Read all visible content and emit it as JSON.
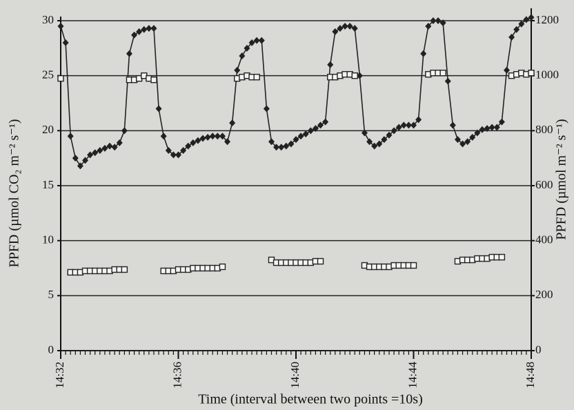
{
  "chart_data": {
    "type": "line",
    "x_label": "Time (interval between two points =10s)",
    "y_label": "PPFD (µmol CO₂ m⁻² s⁻¹)",
    "y2_label": "PPFD (µmol m⁻² s⁻¹)",
    "x": [
      52320,
      52330,
      52340,
      52350,
      52360,
      52370,
      52380,
      52390,
      52400,
      52410,
      52420,
      52430,
      52440,
      52450,
      52460,
      52470,
      52480,
      52490,
      52500,
      52510,
      52520,
      52530,
      52540,
      52550,
      52560,
      52570,
      52580,
      52590,
      52600,
      52610,
      52620,
      52630,
      52640,
      52650,
      52660,
      52670,
      52680,
      52690,
      52700,
      52710,
      52720,
      52730,
      52740,
      52750,
      52760,
      52770,
      52780,
      52790,
      52800,
      52810,
      52820,
      52830,
      52840,
      52850,
      52860,
      52870,
      52880,
      52890,
      52900,
      52910,
      52920,
      52930,
      52940,
      52950,
      52960,
      52970,
      52980,
      52990,
      53000,
      53010,
      53020,
      53030,
      53040,
      53050,
      53060,
      53070,
      53080,
      53090,
      53100,
      53110,
      53120,
      53130,
      53140,
      53150,
      53160,
      53170,
      53180,
      53190,
      53200,
      53210,
      53220,
      53230,
      53240,
      53250,
      53260,
      53270,
      53280
    ],
    "xlim": [
      52320,
      53280
    ],
    "xticks": [
      {
        "value": 52320,
        "label": "14:32"
      },
      {
        "value": 52560,
        "label": "14:36"
      },
      {
        "value": 52800,
        "label": "14:40"
      },
      {
        "value": 53040,
        "label": "14:44"
      },
      {
        "value": 53280,
        "label": "14:48"
      }
    ],
    "ylim": [
      0,
      30
    ],
    "yticks": [
      0,
      5,
      10,
      15,
      20,
      25,
      30
    ],
    "y2lim": [
      0,
      1200
    ],
    "y2ticks": [
      0,
      200,
      400,
      600,
      800,
      1000,
      1200
    ],
    "grid": true,
    "series": [
      {
        "color": "#222222",
        "marker": "diamond",
        "values": [
          29.5,
          28,
          19.5,
          17.5,
          16.8,
          17.3,
          17.8,
          18,
          18.2,
          18.4,
          18.6,
          18.5,
          18.9,
          20,
          27,
          28.7,
          29,
          29.2,
          29.3,
          29.3,
          22,
          19.5,
          18.2,
          17.8,
          17.8,
          18.2,
          18.6,
          18.9,
          19.1,
          19.3,
          19.4,
          19.5,
          19.5,
          19.5,
          19,
          20.7,
          25.5,
          26.8,
          27.5,
          28,
          28.2,
          28.2,
          22,
          19,
          18.5,
          18.5,
          18.6,
          18.8,
          19.2,
          19.5,
          19.7,
          20,
          20.2,
          20.5,
          20.8,
          26,
          29,
          29.3,
          29.5,
          29.5,
          29.3,
          25,
          19.8,
          19,
          18.6,
          18.8,
          19.2,
          19.6,
          20,
          20.3,
          20.5,
          20.5,
          20.5,
          21,
          27,
          29.5,
          30,
          30,
          29.8,
          24.5,
          20.5,
          19.2,
          18.8,
          19,
          19.4,
          19.8,
          20.1,
          20.2,
          20.3,
          20.3,
          20.8,
          25.5,
          28.5,
          29.2,
          29.7,
          30.1,
          30.3
        ]
      },
      {
        "color": "#222222",
        "marker": "square",
        "axis": "y2",
        "values": [
          990,
          null,
          285,
          285,
          285,
          290,
          290,
          290,
          290,
          290,
          290,
          295,
          295,
          295,
          985,
          985,
          990,
          1000,
          990,
          985,
          null,
          290,
          290,
          290,
          295,
          295,
          295,
          300,
          300,
          300,
          300,
          300,
          300,
          305,
          null,
          null,
          990,
          995,
          1000,
          995,
          995,
          null,
          null,
          330,
          320,
          320,
          320,
          320,
          320,
          320,
          320,
          320,
          325,
          325,
          null,
          995,
          995,
          1000,
          1005,
          1005,
          1000,
          null,
          310,
          305,
          305,
          305,
          305,
          305,
          310,
          310,
          310,
          310,
          310,
          null,
          null,
          1005,
          1010,
          1010,
          1010,
          null,
          null,
          325,
          330,
          330,
          330,
          335,
          335,
          335,
          340,
          340,
          340,
          null,
          1000,
          1005,
          1010,
          1005,
          1010
        ]
      }
    ]
  }
}
